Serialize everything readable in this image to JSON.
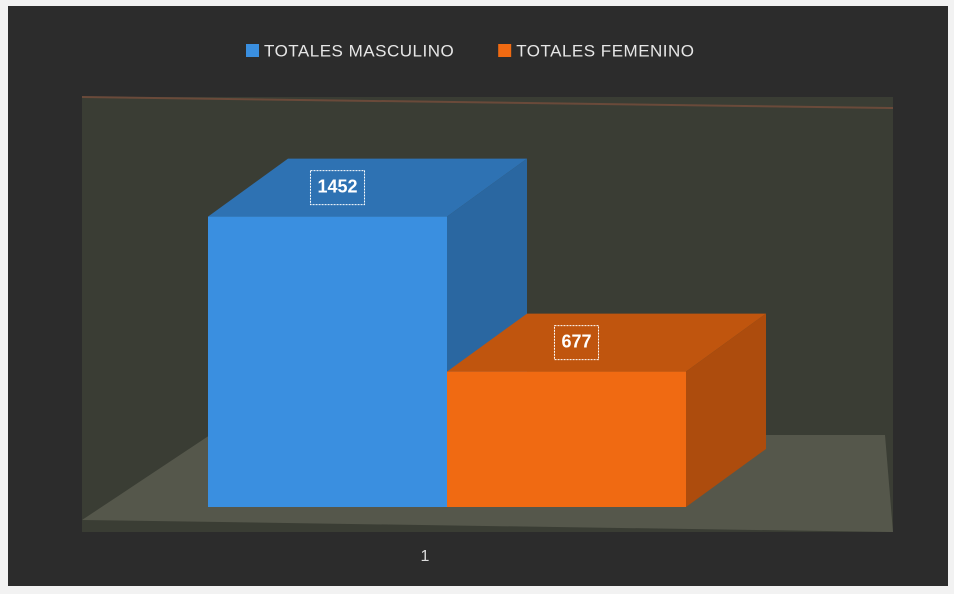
{
  "chart_data": {
    "type": "bar3d",
    "categories": [
      "1"
    ],
    "series": [
      {
        "name": "TOTALES MASCULINO",
        "color": "#3a8fe0",
        "values": [
          1452
        ]
      },
      {
        "name": "TOTALES FEMENINO",
        "color": "#f06a12",
        "values": [
          677
        ]
      }
    ],
    "ylim": [
      0,
      1600
    ],
    "legend": "top"
  }
}
